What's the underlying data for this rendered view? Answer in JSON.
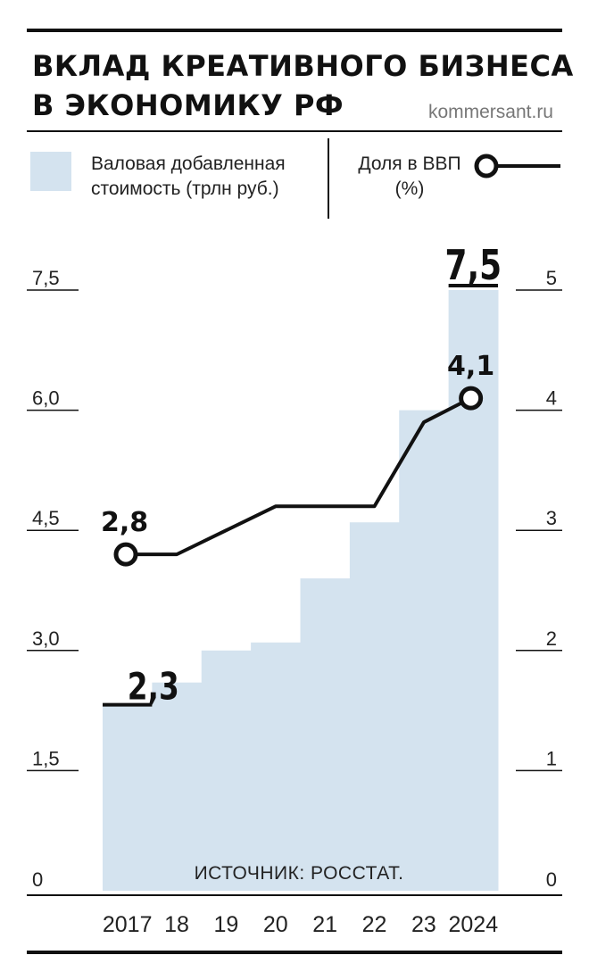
{
  "header": {
    "title_line1": "ВКЛАД КРЕАТИВНОГО БИЗНЕСА",
    "title_line2": "В ЭКОНОМИКУ РФ",
    "site": "kommersant.ru"
  },
  "legend": {
    "bars_label_line1": "Валовая добавленная",
    "bars_label_line2": "стоимость (трлн руб.)",
    "line_label_line1": "Доля в ВВП",
    "line_label_line2": "(%)"
  },
  "colors": {
    "bars": "#d4e3ef",
    "line": "#111111",
    "text": "#111111",
    "site": "#777777"
  },
  "chart_data": {
    "type": "bar+line",
    "categories": [
      "2017",
      "18",
      "19",
      "20",
      "21",
      "22",
      "23",
      "2024"
    ],
    "series": [
      {
        "values": [
          2.3,
          2.6,
          3.0,
          3.1,
          3.9,
          4.6,
          6.0,
          7.5
        ],
        "axis": "left",
        "kind": "bar"
      },
      {
        "values": [
          2.8,
          2.8,
          3.0,
          3.2,
          3.2,
          3.2,
          3.9,
          4.1
        ],
        "axis": "right",
        "kind": "line"
      }
    ],
    "left_axis": {
      "ylim": [
        0,
        7.5
      ],
      "ticks": [
        "0",
        "1,5",
        "3,0",
        "4,5",
        "6,0",
        "7,5"
      ]
    },
    "right_axis": {
      "ylim": [
        0,
        5
      ],
      "ticks": [
        "0",
        "1",
        "2",
        "3",
        "4",
        "5"
      ]
    },
    "annotations": {
      "bar_first": "2,3",
      "bar_last": "7,5",
      "line_first": "2,8",
      "line_last": "4,1",
      "source": "ИСТОЧНИК: РОССТАТ."
    },
    "grid": false,
    "legend_position": "top"
  }
}
